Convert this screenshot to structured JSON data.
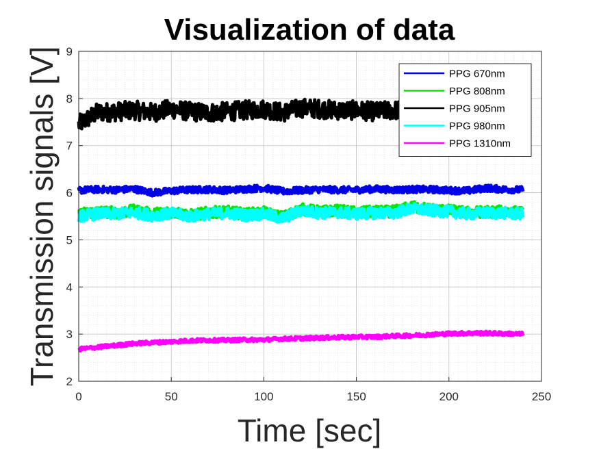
{
  "chart_data": {
    "type": "line",
    "title": "Visualization of data",
    "xlabel": "Time [sec]",
    "ylabel": "Transmission signals [V]",
    "xlim": [
      0,
      250
    ],
    "ylim": [
      2,
      9
    ],
    "xticks": [
      0,
      50,
      100,
      150,
      200,
      250
    ],
    "yticks": [
      2,
      3,
      4,
      5,
      6,
      7,
      8,
      9
    ],
    "grid": "minor dotted",
    "legend_position": "top-right",
    "x": [
      0,
      10,
      20,
      30,
      40,
      50,
      60,
      70,
      80,
      90,
      100,
      110,
      120,
      130,
      140,
      150,
      160,
      170,
      180,
      190,
      200,
      210,
      220,
      230,
      240
    ],
    "series": [
      {
        "name": "PPG 670nm",
        "color": "#0000e6",
        "noise": 0.07,
        "values": [
          6.05,
          6.07,
          6.06,
          6.08,
          6.0,
          6.04,
          6.06,
          6.07,
          6.05,
          6.08,
          6.1,
          6.03,
          6.05,
          6.07,
          6.06,
          6.06,
          6.08,
          6.06,
          6.07,
          6.07,
          6.05,
          6.04,
          6.1,
          6.07,
          6.06
        ]
      },
      {
        "name": "PPG 808nm",
        "color": "#00e600",
        "noise": 0.12,
        "values": [
          5.55,
          5.6,
          5.58,
          5.62,
          5.55,
          5.6,
          5.52,
          5.58,
          5.6,
          5.55,
          5.58,
          5.48,
          5.65,
          5.6,
          5.62,
          5.58,
          5.6,
          5.6,
          5.7,
          5.65,
          5.62,
          5.58,
          5.6,
          5.6,
          5.58
        ]
      },
      {
        "name": "PPG 905nm",
        "color": "#000000",
        "noise": 0.2,
        "values": [
          7.45,
          7.7,
          7.72,
          7.75,
          7.7,
          7.78,
          7.72,
          7.7,
          7.72,
          7.75,
          7.78,
          7.7,
          7.8,
          7.78,
          7.75,
          7.75,
          7.72,
          7.75,
          7.75,
          7.8,
          7.78,
          7.75,
          7.75,
          7.8,
          7.78
        ]
      },
      {
        "name": "PPG 980nm",
        "color": "#00ffff",
        "noise": 0.12,
        "values": [
          5.5,
          5.55,
          5.55,
          5.58,
          5.52,
          5.56,
          5.5,
          5.55,
          5.57,
          5.52,
          5.55,
          5.45,
          5.62,
          5.57,
          5.58,
          5.55,
          5.57,
          5.57,
          5.66,
          5.62,
          5.6,
          5.55,
          5.57,
          5.57,
          5.55
        ]
      },
      {
        "name": "PPG 1310nm",
        "color": "#ff00ff",
        "noise": 0.04,
        "values": [
          2.68,
          2.72,
          2.76,
          2.8,
          2.82,
          2.84,
          2.86,
          2.87,
          2.87,
          2.88,
          2.88,
          2.9,
          2.91,
          2.92,
          2.93,
          2.94,
          2.94,
          2.96,
          2.97,
          2.99,
          3.01,
          3.02,
          3.02,
          3.01,
          3.0
        ]
      }
    ]
  }
}
